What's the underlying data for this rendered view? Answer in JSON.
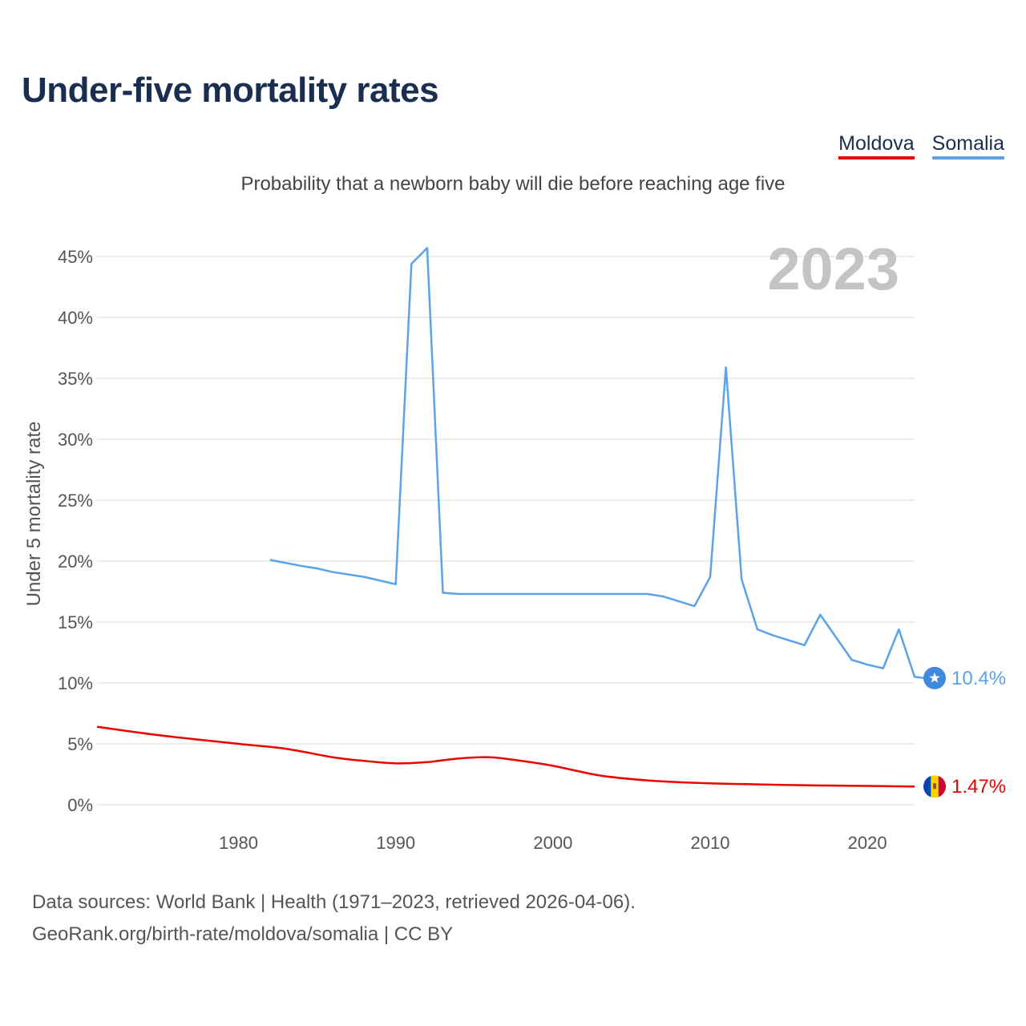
{
  "title": "Under-five mortality rates",
  "subtitle": "Probability that a newborn baby will die before reaching age five",
  "legend": [
    {
      "label": "Moldova",
      "color": "#ee0000"
    },
    {
      "label": "Somalia",
      "color": "#5ba3e6"
    }
  ],
  "year_label": "2023",
  "source": {
    "line1": "Data sources: World Bank | Health (1971–2023, retrieved 2026-04-06).",
    "line2": "GeoRank.org/birth-rate/moldova/somalia | CC BY"
  },
  "chart_data": {
    "type": "line",
    "ylabel": "Under 5 mortality rate",
    "xlabel": "",
    "xlim": [
      1971,
      2023
    ],
    "ylim": [
      0,
      45
    ],
    "yticks": [
      0,
      5,
      10,
      15,
      20,
      25,
      30,
      35,
      40,
      45
    ],
    "ytick_labels": [
      "0%",
      "5%",
      "10%",
      "15%",
      "20%",
      "25%",
      "30%",
      "35%",
      "40%",
      "45%"
    ],
    "xticks": [
      1980,
      1990,
      2000,
      2010,
      2020
    ],
    "xtick_labels": [
      "1980",
      "1990",
      "2000",
      "2010",
      "2020"
    ],
    "grid": true,
    "series": [
      {
        "name": "Somalia",
        "color": "#5ba3e6",
        "end_label": "10.4%",
        "icon": "somalia-flag-icon",
        "points": [
          [
            1982,
            20.1
          ],
          [
            1984,
            19.6
          ],
          [
            1985,
            19.4
          ],
          [
            1986,
            19.1
          ],
          [
            1988,
            18.7
          ],
          [
            1990,
            18.1
          ],
          [
            1991,
            44.4
          ],
          [
            1992,
            45.7
          ],
          [
            1993,
            17.4
          ],
          [
            1994,
            17.3
          ],
          [
            2006,
            17.3
          ],
          [
            2007,
            17.1
          ],
          [
            2009,
            16.3
          ],
          [
            2010,
            18.7
          ],
          [
            2011,
            35.9
          ],
          [
            2012,
            18.5
          ],
          [
            2013,
            14.4
          ],
          [
            2014,
            13.9
          ],
          [
            2016,
            13.1
          ],
          [
            2017,
            15.6
          ],
          [
            2019,
            11.9
          ],
          [
            2020,
            11.5
          ],
          [
            2021,
            11.2
          ],
          [
            2022,
            14.4
          ],
          [
            2023,
            10.5
          ],
          [
            2023.6,
            10.4
          ]
        ]
      },
      {
        "name": "Moldova",
        "color": "#ee0000",
        "end_label": "1.47%",
        "icon": "moldova-flag-icon",
        "points": [
          [
            1971,
            6.4
          ],
          [
            1975,
            5.7
          ],
          [
            1980,
            5.0
          ],
          [
            1983,
            4.6
          ],
          [
            1986,
            3.9
          ],
          [
            1988,
            3.6
          ],
          [
            1990,
            3.4
          ],
          [
            1992,
            3.5
          ],
          [
            1994,
            3.8
          ],
          [
            1996,
            3.9
          ],
          [
            1998,
            3.6
          ],
          [
            2000,
            3.2
          ],
          [
            2003,
            2.4
          ],
          [
            2006,
            2.0
          ],
          [
            2009,
            1.8
          ],
          [
            2012,
            1.7
          ],
          [
            2016,
            1.6
          ],
          [
            2020,
            1.55
          ],
          [
            2023,
            1.5
          ]
        ]
      }
    ]
  }
}
